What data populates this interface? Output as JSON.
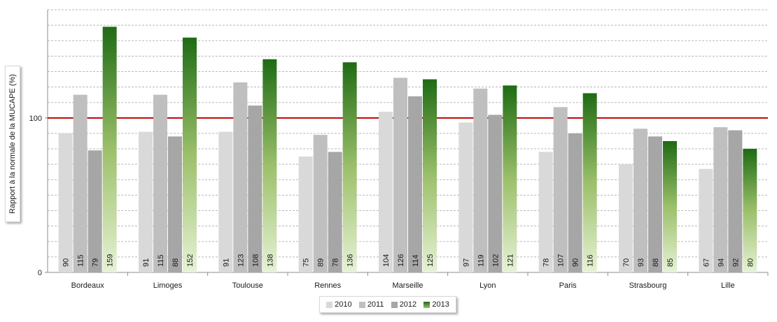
{
  "chart_data": {
    "type": "bar",
    "title": "",
    "xlabel": "",
    "ylabel": "Rapport à la normale de la MUCAPE (%)",
    "ylim": [
      0,
      170
    ],
    "y_ticks": [
      0,
      100
    ],
    "reference_line": {
      "value": 100,
      "color": "#c00000"
    },
    "grid": true,
    "legend_position": "bottom",
    "categories": [
      "Bordeaux",
      "Limoges",
      "Toulouse",
      "Rennes",
      "Marseille",
      "Lyon",
      "Paris",
      "Strasbourg",
      "Lille"
    ],
    "series": [
      {
        "name": "2010",
        "color": "#d9d9d9",
        "values": [
          90,
          91,
          91,
          75,
          104,
          97,
          78,
          70,
          67
        ]
      },
      {
        "name": "2011",
        "color": "#bfbfbf",
        "values": [
          115,
          115,
          123,
          89,
          126,
          119,
          107,
          93,
          94
        ]
      },
      {
        "name": "2012",
        "color": "#a6a6a6",
        "values": [
          79,
          88,
          108,
          78,
          114,
          102,
          90,
          88,
          92
        ]
      },
      {
        "name": "2013",
        "color": "#2e7d1f",
        "values": [
          159,
          152,
          138,
          136,
          125,
          121,
          116,
          85,
          80
        ]
      }
    ]
  }
}
